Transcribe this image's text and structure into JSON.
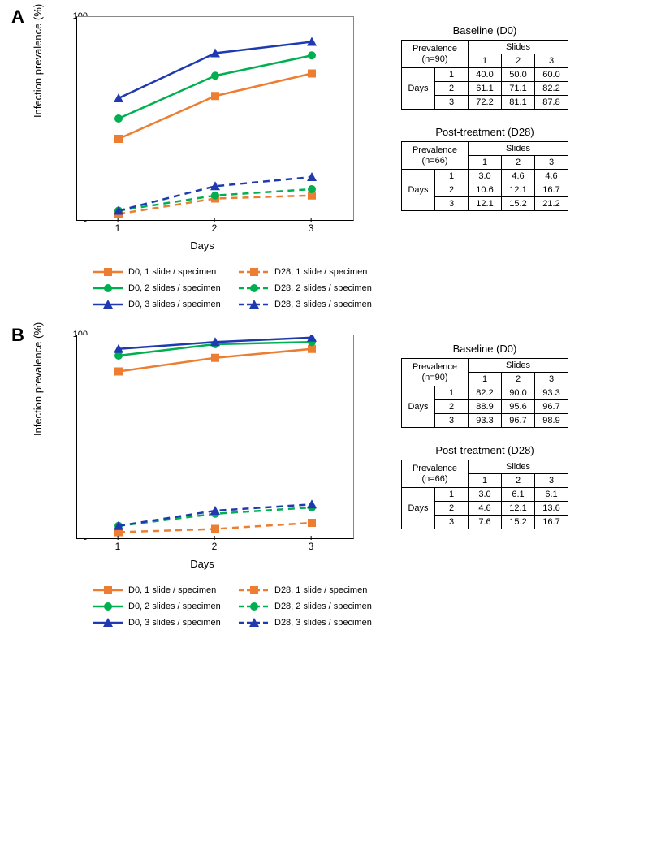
{
  "colors": {
    "orange": "#ed7d31",
    "green": "#00b050",
    "blue": "#1f3ab0",
    "grid": "#888888",
    "axis": "#000000"
  },
  "xcats": [
    "1",
    "2",
    "3"
  ],
  "xlabel": "Days",
  "ylabel": "Infection prevalence (%)",
  "yticks": [
    0,
    10,
    20,
    30,
    40,
    50,
    60,
    70,
    80,
    90,
    100
  ],
  "ylim": [
    0,
    100
  ],
  "legend": [
    {
      "label": "D0, 1 slide / specimen",
      "color": "orange",
      "marker": "square",
      "dash": false
    },
    {
      "label": "D28, 1 slide / specimen",
      "color": "orange",
      "marker": "square",
      "dash": true
    },
    {
      "label": "D0, 2 slides / specimen",
      "color": "green",
      "marker": "circle",
      "dash": false
    },
    {
      "label": "D28, 2 slides / specimen",
      "color": "green",
      "marker": "circle",
      "dash": true
    },
    {
      "label": "D0, 3 slides / specimen",
      "color": "blue",
      "marker": "triangle",
      "dash": false
    },
    {
      "label": "D28, 3 slides / specimen",
      "color": "blue",
      "marker": "triangle",
      "dash": true
    }
  ],
  "panels": {
    "A": {
      "label": "A",
      "series": [
        {
          "color": "orange",
          "marker": "square",
          "dash": false,
          "y": [
            40.0,
            61.1,
            72.2
          ]
        },
        {
          "color": "green",
          "marker": "circle",
          "dash": false,
          "y": [
            50.0,
            71.1,
            81.1
          ]
        },
        {
          "color": "blue",
          "marker": "triangle",
          "dash": false,
          "y": [
            60.0,
            82.2,
            87.8
          ]
        },
        {
          "color": "orange",
          "marker": "square",
          "dash": true,
          "y": [
            3.0,
            10.6,
            12.1
          ]
        },
        {
          "color": "green",
          "marker": "circle",
          "dash": true,
          "y": [
            4.6,
            12.1,
            15.2
          ]
        },
        {
          "color": "blue",
          "marker": "triangle",
          "dash": true,
          "y": [
            4.6,
            16.7,
            21.2
          ]
        }
      ],
      "tables": [
        {
          "title": "Baseline (D0)",
          "n": "(n=90)",
          "rows": [
            [
              "40.0",
              "50.0",
              "60.0"
            ],
            [
              "61.1",
              "71.1",
              "82.2"
            ],
            [
              "72.2",
              "81.1",
              "87.8"
            ]
          ]
        },
        {
          "title": "Post-treatment (D28)",
          "n": "(n=66)",
          "rows": [
            [
              "3.0",
              "4.6",
              "4.6"
            ],
            [
              "10.6",
              "12.1",
              "16.7"
            ],
            [
              "12.1",
              "15.2",
              "21.2"
            ]
          ]
        }
      ]
    },
    "B": {
      "label": "B",
      "series": [
        {
          "color": "orange",
          "marker": "square",
          "dash": false,
          "y": [
            82.2,
            88.9,
            93.3
          ]
        },
        {
          "color": "green",
          "marker": "circle",
          "dash": false,
          "y": [
            90.0,
            95.6,
            96.7
          ]
        },
        {
          "color": "blue",
          "marker": "triangle",
          "dash": false,
          "y": [
            93.3,
            96.7,
            98.9
          ]
        },
        {
          "color": "orange",
          "marker": "square",
          "dash": true,
          "y": [
            3.0,
            4.6,
            7.6
          ]
        },
        {
          "color": "green",
          "marker": "circle",
          "dash": true,
          "y": [
            6.1,
            12.1,
            15.2
          ]
        },
        {
          "color": "blue",
          "marker": "triangle",
          "dash": true,
          "y": [
            6.1,
            13.6,
            16.7
          ]
        }
      ],
      "tables": [
        {
          "title": "Baseline (D0)",
          "n": "(n=90)",
          "rows": [
            [
              "82.2",
              "90.0",
              "93.3"
            ],
            [
              "88.9",
              "95.6",
              "96.7"
            ],
            [
              "93.3",
              "96.7",
              "98.9"
            ]
          ]
        },
        {
          "title": "Post-treatment (D28)",
          "n": "(n=66)",
          "rows": [
            [
              "3.0",
              "6.1",
              "6.1"
            ],
            [
              "4.6",
              "12.1",
              "13.6"
            ],
            [
              "7.6",
              "15.2",
              "16.7"
            ]
          ]
        }
      ]
    }
  },
  "tableHeaders": {
    "prev": "Prevalence",
    "slides": "Slides",
    "days": "Days",
    "cols": [
      "1",
      "2",
      "3"
    ],
    "rowlabels": [
      "1",
      "2",
      "3"
    ]
  }
}
